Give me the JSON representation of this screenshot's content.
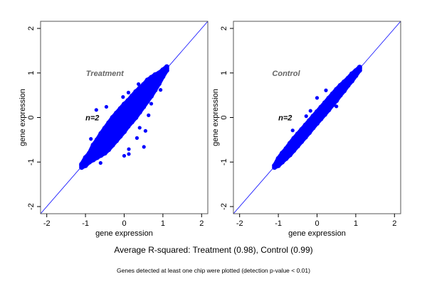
{
  "chart_data": [
    {
      "type": "scatter",
      "title": "Treatment",
      "annotation": "n=2",
      "xlabel": "gene expression",
      "ylabel": "gene expression",
      "xlim": [
        -2.16,
        2.16
      ],
      "ylim": [
        -2.16,
        2.16
      ],
      "xticks": [
        -2,
        -1,
        0,
        1,
        2
      ],
      "yticks": [
        -2,
        -1,
        0,
        1,
        2
      ],
      "grid": false,
      "reference_line": "y = x",
      "point_color": "#0000ff",
      "line_color": "#0000ff",
      "band": [
        {
          "x": -1.1,
          "y": [
            -1.12,
            -1.08,
            -1.05
          ]
        },
        {
          "x": -1.0,
          "y": [
            -1.08,
            -1.02,
            -0.96,
            -0.9
          ]
        },
        {
          "x": -0.9,
          "y": [
            -1.0,
            -0.93,
            -0.86,
            -0.8
          ]
        },
        {
          "x": -0.8,
          "y": [
            -0.95,
            -0.86,
            -0.78,
            -0.7,
            -0.62
          ]
        },
        {
          "x": -0.7,
          "y": [
            -0.9,
            -0.8,
            -0.7,
            -0.6,
            -0.5
          ]
        },
        {
          "x": -0.6,
          "y": [
            -0.85,
            -0.72,
            -0.6,
            -0.48,
            -0.36
          ]
        },
        {
          "x": -0.5,
          "y": [
            -0.8,
            -0.65,
            -0.5,
            -0.37,
            -0.24
          ]
        },
        {
          "x": -0.4,
          "y": [
            -0.72,
            -0.56,
            -0.4,
            -0.26,
            -0.12
          ]
        },
        {
          "x": -0.3,
          "y": [
            -0.62,
            -0.46,
            -0.3,
            -0.16,
            0.0
          ]
        },
        {
          "x": -0.2,
          "y": [
            -0.52,
            -0.36,
            -0.2,
            -0.06,
            0.1
          ]
        },
        {
          "x": -0.1,
          "y": [
            -0.42,
            -0.26,
            -0.1,
            0.05,
            0.2
          ]
        },
        {
          "x": 0.0,
          "y": [
            -0.32,
            -0.16,
            0.0,
            0.14,
            0.3
          ]
        },
        {
          "x": 0.1,
          "y": [
            -0.2,
            -0.05,
            0.1,
            0.24,
            0.38
          ]
        },
        {
          "x": 0.2,
          "y": [
            -0.1,
            0.05,
            0.2,
            0.34,
            0.48
          ]
        },
        {
          "x": 0.3,
          "y": [
            0.0,
            0.15,
            0.3,
            0.44,
            0.58
          ]
        },
        {
          "x": 0.4,
          "y": [
            0.12,
            0.26,
            0.4,
            0.54,
            0.66
          ]
        },
        {
          "x": 0.5,
          "y": [
            0.24,
            0.37,
            0.5,
            0.62,
            0.74
          ]
        },
        {
          "x": 0.6,
          "y": [
            0.36,
            0.48,
            0.6,
            0.72,
            0.84
          ]
        },
        {
          "x": 0.7,
          "y": [
            0.48,
            0.6,
            0.7,
            0.8,
            0.9
          ]
        },
        {
          "x": 0.8,
          "y": [
            0.62,
            0.72,
            0.8,
            0.88,
            0.96
          ]
        },
        {
          "x": 0.9,
          "y": [
            0.76,
            0.84,
            0.9,
            0.96,
            1.0
          ]
        },
        {
          "x": 1.0,
          "y": [
            0.92,
            0.98,
            1.03,
            1.07
          ]
        },
        {
          "x": 1.1,
          "y": [
            1.06,
            1.1,
            1.14
          ]
        }
      ],
      "outliers": [
        [
          -0.72,
          0.17
        ],
        [
          -0.61,
          -1.02
        ],
        [
          0.51,
          -0.66
        ],
        [
          0.0,
          -0.86
        ],
        [
          0.12,
          -0.82
        ],
        [
          0.63,
          0.05
        ],
        [
          0.55,
          -0.3
        ],
        [
          0.4,
          -0.23
        ],
        [
          0.94,
          0.62
        ],
        [
          0.37,
          0.75
        ],
        [
          -0.86,
          -0.48
        ],
        [
          -0.03,
          0.46
        ],
        [
          0.11,
          0.56
        ],
        [
          -0.46,
          0.24
        ],
        [
          0.7,
          0.31
        ],
        [
          0.33,
          -0.46
        ],
        [
          0.12,
          -0.71
        ]
      ]
    },
    {
      "type": "scatter",
      "title": "Control",
      "annotation": "n=2",
      "xlabel": "gene expression",
      "ylabel": "gene expression",
      "xlim": [
        -2.16,
        2.16
      ],
      "ylim": [
        -2.16,
        2.16
      ],
      "xticks": [
        -2,
        -1,
        0,
        1,
        2
      ],
      "yticks": [
        -2,
        -1,
        0,
        1,
        2
      ],
      "grid": false,
      "reference_line": "y = x",
      "point_color": "#0000ff",
      "line_color": "#0000ff",
      "band": [
        {
          "x": -1.1,
          "y": [
            -1.12,
            -1.08
          ]
        },
        {
          "x": -1.0,
          "y": [
            -1.08,
            -1.0,
            -0.92
          ]
        },
        {
          "x": -0.9,
          "y": [
            -1.0,
            -0.9,
            -0.8
          ]
        },
        {
          "x": -0.8,
          "y": [
            -0.92,
            -0.8,
            -0.7
          ]
        },
        {
          "x": -0.7,
          "y": [
            -0.84,
            -0.7,
            -0.58
          ]
        },
        {
          "x": -0.6,
          "y": [
            -0.74,
            -0.6,
            -0.47
          ]
        },
        {
          "x": -0.5,
          "y": [
            -0.64,
            -0.5,
            -0.37
          ]
        },
        {
          "x": -0.4,
          "y": [
            -0.54,
            -0.4,
            -0.27
          ]
        },
        {
          "x": -0.3,
          "y": [
            -0.44,
            -0.3,
            -0.17
          ]
        },
        {
          "x": -0.2,
          "y": [
            -0.34,
            -0.2,
            -0.07
          ]
        },
        {
          "x": -0.1,
          "y": [
            -0.23,
            -0.1,
            0.03
          ]
        },
        {
          "x": 0.0,
          "y": [
            -0.13,
            0.0,
            0.13
          ]
        },
        {
          "x": 0.1,
          "y": [
            -0.03,
            0.1,
            0.23
          ]
        },
        {
          "x": 0.2,
          "y": [
            0.07,
            0.2,
            0.33
          ]
        },
        {
          "x": 0.3,
          "y": [
            0.17,
            0.3,
            0.43
          ]
        },
        {
          "x": 0.4,
          "y": [
            0.28,
            0.4,
            0.53
          ]
        },
        {
          "x": 0.5,
          "y": [
            0.38,
            0.5,
            0.63
          ]
        },
        {
          "x": 0.6,
          "y": [
            0.5,
            0.6,
            0.72
          ]
        },
        {
          "x": 0.7,
          "y": [
            0.6,
            0.7,
            0.8
          ]
        },
        {
          "x": 0.8,
          "y": [
            0.72,
            0.8,
            0.88
          ]
        },
        {
          "x": 0.9,
          "y": [
            0.82,
            0.9,
            0.98
          ]
        },
        {
          "x": 1.0,
          "y": [
            0.94,
            1.0,
            1.05
          ]
        },
        {
          "x": 1.1,
          "y": [
            1.06,
            1.1,
            1.13
          ]
        }
      ],
      "outliers": [
        [
          0.23,
          0.61
        ],
        [
          0.0,
          0.44
        ],
        [
          -0.63,
          -0.29
        ],
        [
          -0.28,
          0.03
        ],
        [
          0.5,
          0.25
        ],
        [
          -0.17,
          0.15
        ]
      ]
    }
  ],
  "caption": "Average R-squared: Treatment (0.98), Control (0.99)",
  "footnote": "Genes detected at least one chip were plotted (detection p-value < 0.01)"
}
